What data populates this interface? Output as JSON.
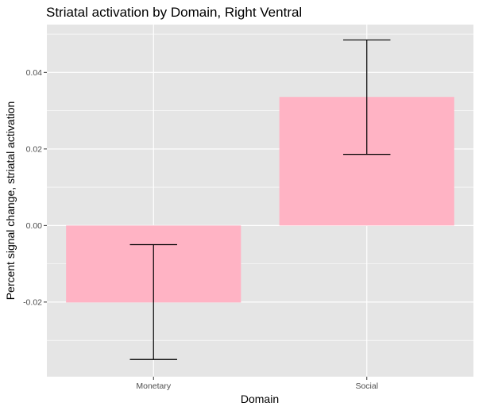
{
  "chart_data": {
    "type": "bar",
    "title": "Striatal activation by Domain, Right Ventral",
    "xlabel": "Domain",
    "ylabel": "Percent signal change, striatal activation",
    "categories": [
      "Monetary",
      "Social"
    ],
    "values": [
      -0.0201,
      0.0336
    ],
    "error_low": [
      -0.035,
      0.0186
    ],
    "error_high": [
      -0.005,
      0.0485
    ],
    "ylim": [
      -0.0395,
      0.0525
    ],
    "yticks": [
      -0.02,
      0.0,
      0.02,
      0.04
    ],
    "ytick_labels": [
      "-0.02",
      "0.00",
      "0.02",
      "0.04"
    ],
    "grid": true,
    "legend": "none",
    "colors": {
      "bar_fill": "#ffb3c4",
      "panel_background": "#e5e5e5",
      "grid_major": "#ffffff",
      "error_bar": "#000000"
    }
  }
}
